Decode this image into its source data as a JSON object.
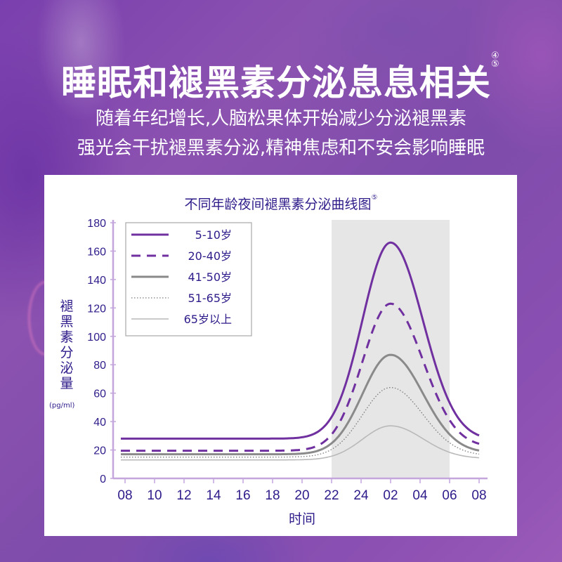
{
  "header": {
    "title": "睡眠和褪黑素分泌息息相关",
    "title_refs": [
      "④",
      "⑤"
    ],
    "subtitle_lines": [
      "随着年纪增长,人脑松果体开始减少分泌褪黑素",
      "强光会干扰褪黑素分泌,精神焦虑和不安会影响睡眠"
    ]
  },
  "colors": {
    "axis": "#c4a6dc",
    "text": "#2f1a8a",
    "purple_series": "#7030a0",
    "gray_dark": "#8a8a8a",
    "gray_mid": "#7a7a7a",
    "gray_light": "#b9b9b9",
    "night_band": "#e6e6e6"
  },
  "chart_data": {
    "type": "line",
    "title": "不同年龄夜间褪黑素分泌曲线图",
    "title_ref": "⑤",
    "xlabel": "时间",
    "ylabel": "褪黑素分泌量",
    "yunit": "(pg/ml)",
    "x_ticks": [
      "08",
      "10",
      "12",
      "14",
      "16",
      "18",
      "20",
      "22",
      "24",
      "02",
      "04",
      "06",
      "08"
    ],
    "y_ticks": [
      0,
      20,
      40,
      60,
      80,
      100,
      120,
      140,
      160,
      180
    ],
    "ylim": [
      0,
      180
    ],
    "grid": false,
    "legend_position": "upper-left-inside",
    "shaded_region": {
      "from": "22",
      "to": "06",
      "label": "night"
    },
    "x": [
      "08",
      "10",
      "12",
      "14",
      "16",
      "18",
      "20",
      "22",
      "24",
      "02",
      "04",
      "06",
      "08"
    ],
    "series": [
      {
        "name": "5-10岁",
        "style": "solid",
        "color": "#7030a0",
        "width": 3,
        "values": [
          28,
          28,
          28,
          28,
          28,
          28,
          28,
          40,
          122,
          166,
          110,
          45,
          27
        ],
        "base_start": 28,
        "peak": 166,
        "base_end": 27
      },
      {
        "name": "20-40岁",
        "style": "dashed",
        "color": "#7030a0",
        "width": 3,
        "values": [
          19.5,
          19.5,
          19.5,
          19.5,
          19.5,
          19.5,
          19.5,
          26,
          88,
          123,
          82,
          34,
          22
        ],
        "base_start": 19.5,
        "peak": 123,
        "base_end": 22
      },
      {
        "name": "41-50岁",
        "style": "solid",
        "color": "#8a8a8a",
        "width": 3,
        "values": [
          17,
          17,
          17,
          17,
          17,
          17,
          17,
          22,
          64,
          87,
          60,
          27,
          18
        ],
        "base_start": 17,
        "peak": 87,
        "base_end": 18
      },
      {
        "name": "51-65岁",
        "style": "dotted",
        "color": "#7a7a7a",
        "width": 1.3,
        "values": [
          15,
          15,
          15,
          15,
          15,
          15,
          15,
          19,
          48,
          64,
          46,
          22,
          16
        ],
        "base_start": 15,
        "peak": 64,
        "base_end": 16
      },
      {
        "name": "65岁以上",
        "style": "solid",
        "color": "#b9b9b9",
        "width": 1.6,
        "values": [
          13,
          13,
          13,
          13,
          13,
          13,
          13,
          15,
          29,
          37,
          28,
          17,
          14
        ],
        "base_start": 13,
        "peak": 37,
        "base_end": 14
      }
    ]
  }
}
